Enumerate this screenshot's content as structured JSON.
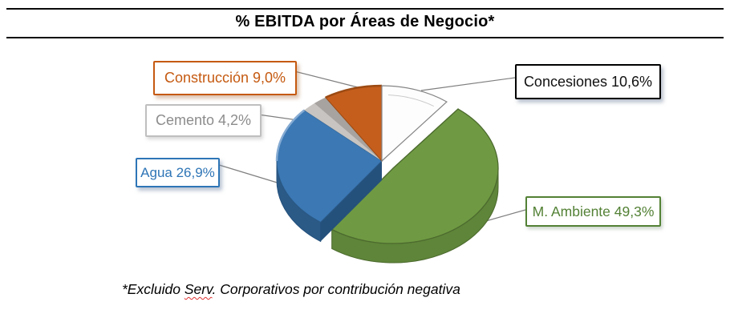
{
  "title": {
    "text": "% EBITDA por Áreas de Negocio*"
  },
  "footnote": {
    "prefix": "*Excluido ",
    "misspelled": "Serv",
    "suffix": ". Corporativos por contribución negativa",
    "squiggle_color": "#E03131"
  },
  "labels": {
    "construccion": {
      "text": "Construcción 9,0%",
      "color": "#C55A11",
      "border": "#C55A11"
    },
    "cemento": {
      "text": "Cemento 4,2%",
      "color": "#8C8C8C",
      "border": "#BFBFBF"
    },
    "agua": {
      "text": "Agua 26,9%",
      "color": "#2E75B6",
      "border": "#2E75B6"
    },
    "concesiones": {
      "text": "Concesiones 10,6%",
      "color": "#111111",
      "border": "#000000"
    },
    "m_ambiente": {
      "text": "M. Ambiente 49,3%",
      "color": "#538135",
      "border": "#538135"
    }
  },
  "leader_line_color": "#7F7F7F",
  "chart_data": {
    "type": "pie",
    "style": "3d-exploded",
    "title": "% EBITDA por Áreas de Negocio*",
    "unit": "%",
    "start_angle_deg": 0,
    "direction": "clockwise",
    "legend": "none",
    "slices": [
      {
        "name": "Concesiones",
        "value": 10.6,
        "color": "#FDFDFD",
        "outline": "#858585"
      },
      {
        "name": "M. Ambiente",
        "value": 49.3,
        "color": "#6F9A43",
        "side": "#5E8539",
        "rimline": "#4C6A2E",
        "explode": true
      },
      {
        "name": "Agua",
        "value": 26.9,
        "color": "#3B78B4",
        "side": "#2B5A87",
        "cut": "#24507C",
        "highlight": "#85ABD3"
      },
      {
        "name": "Cemento",
        "value": 4.2,
        "color": "#C7C4C1",
        "color2": "#A7A3A0"
      },
      {
        "name": "Construcción",
        "value": 9.0,
        "color": "#C55E1D",
        "rim": "#9C4A12"
      }
    ]
  }
}
